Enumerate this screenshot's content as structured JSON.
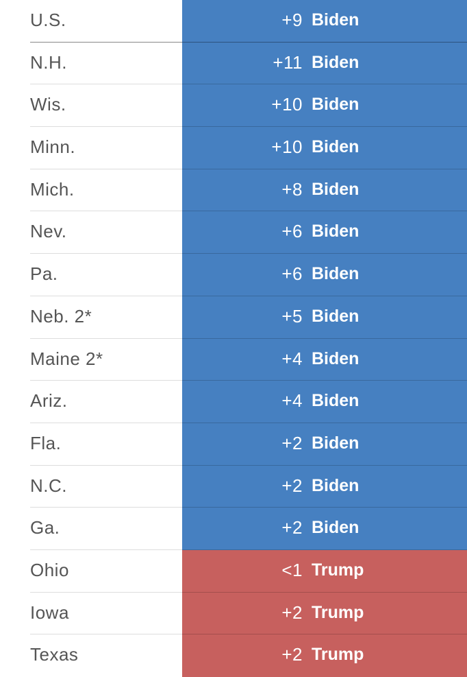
{
  "table": {
    "colors": {
      "Biden": "#4680c1",
      "Trump": "#c7605e"
    },
    "rows": [
      [
        "U.S.",
        "+9",
        "Biden"
      ],
      [
        "N.H.",
        "+11",
        "Biden"
      ],
      [
        "Wis.",
        "+10",
        "Biden"
      ],
      [
        "Minn.",
        "+10",
        "Biden"
      ],
      [
        "Mich.",
        "+8",
        "Biden"
      ],
      [
        "Nev.",
        "+6",
        "Biden"
      ],
      [
        "Pa.",
        "+6",
        "Biden"
      ],
      [
        "Neb. 2*",
        "+5",
        "Biden"
      ],
      [
        "Maine 2*",
        "+4",
        "Biden"
      ],
      [
        "Ariz.",
        "+4",
        "Biden"
      ],
      [
        "Fla.",
        "+2",
        "Biden"
      ],
      [
        "N.C.",
        "+2",
        "Biden"
      ],
      [
        "Ga.",
        "+2",
        "Biden"
      ],
      [
        "Ohio",
        "<1",
        "Trump"
      ],
      [
        "Iowa",
        "+2",
        "Trump"
      ],
      [
        "Texas",
        "+2",
        "Trump"
      ]
    ]
  }
}
